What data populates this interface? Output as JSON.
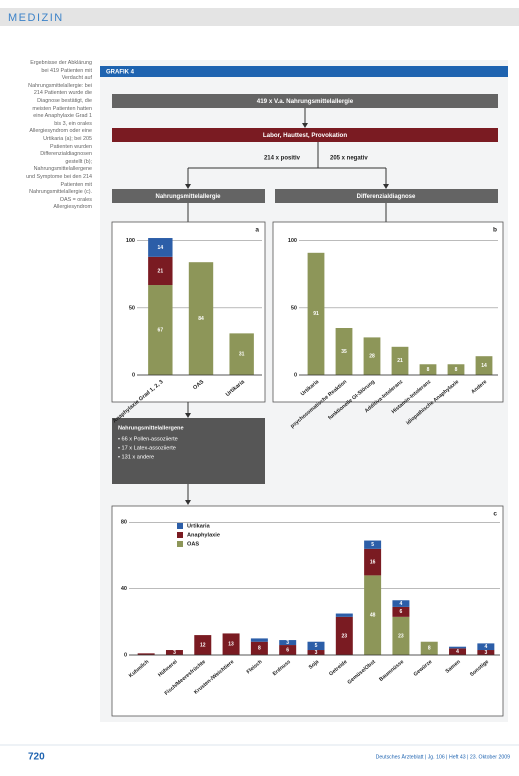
{
  "header": {
    "title": "MEDIZIN"
  },
  "caption": "Ergebnisse der Abklärung bei 419 Patienten mit Verdacht auf Nahrungsmittelallergie: bei 214 Patienten wurde die Diagnose bestätigt, die meisten Patienten hatten eine Anaphylaxie Grad 1 bis 3, ein orales Allergiesyndrom oder eine Urtikaria (a); bei 205 Patienten wurden Differenzialdiagnosen gestellt (b); Nahrungsmittelallergene und Symptome bei den 214 Patienten mit Nahrungsmittelallergie (c). OAS = orales Allergiesyndrom",
  "figure": {
    "title": "GRAFIK 4",
    "flow": {
      "start": "419 x V.a. Nahrungsmittelallergie",
      "tests": "Labor, Hauttest, Provokation",
      "positive": "214 x positiv",
      "negative": "205 x negativ",
      "left_box": "Nahrungsmittelallergie",
      "right_box": "Differenzialdiagnose"
    },
    "allergen_box": {
      "title": "Nahrungsmittelallergene",
      "items": [
        "• 66 x Pollen-assoziierte",
        "• 17 x Latex-assoziierte",
        "• 131 x andere"
      ]
    }
  },
  "chart_data": [
    {
      "type": "bar",
      "panel": "a",
      "categories": [
        "Anaphylaxie Grad 1, 2, 3",
        "OAS",
        "Urtikaria"
      ],
      "series": [
        {
          "color": "#8d9659",
          "values": [
            67,
            84,
            31
          ]
        },
        {
          "color": "#7a1b22",
          "values": [
            21,
            null,
            null
          ]
        },
        {
          "color": "#2c5ea8",
          "values": [
            14,
            null,
            null
          ]
        }
      ],
      "ylim": [
        0,
        105
      ],
      "yticks": [
        0,
        50,
        100
      ],
      "grid": true
    },
    {
      "type": "bar",
      "panel": "b",
      "categories": [
        "Urtikaria",
        "psychosomatische Reaktion",
        "funktionelle GI-Störung",
        "Additiva-Intoleranz",
        "Histamin-Intoleranz",
        "idiopathische Anaphylaxie",
        "Andere"
      ],
      "series": [
        {
          "color": "#8d9659",
          "values": [
            91,
            35,
            28,
            21,
            8,
            8,
            14
          ]
        }
      ],
      "ylim": [
        0,
        105
      ],
      "yticks": [
        0,
        50,
        100
      ],
      "grid": true
    },
    {
      "type": "bar",
      "panel": "c",
      "categories": [
        "Kuhmilch",
        "Hühnerei",
        "Fisch/Meeresfrüchte",
        "Krusten-/Weichtiere",
        "Fleisch",
        "Erdnuss",
        "Soja",
        "Getreide",
        "Gemüse/Obst",
        "Baumnüsse",
        "Gewürze",
        "Samen",
        "Sonstige"
      ],
      "series": [
        {
          "name": "OAS",
          "color": "#8d9659",
          "values": [
            null,
            null,
            null,
            null,
            null,
            null,
            null,
            null,
            48,
            23,
            8,
            null,
            null
          ]
        },
        {
          "name": "Anaphylaxie",
          "color": "#7a1b22",
          "values": [
            1,
            3,
            12,
            13,
            8,
            6,
            3,
            23,
            16,
            6,
            null,
            4,
            3
          ]
        },
        {
          "name": "Urtikaria",
          "color": "#2c5ea8",
          "values": [
            null,
            null,
            null,
            null,
            2,
            3,
            5,
            2,
            5,
            4,
            null,
            1,
            4
          ]
        }
      ],
      "ylim": [
        0,
        85
      ],
      "yticks": [
        0,
        40,
        80
      ],
      "grid": true,
      "legend": "top-left"
    }
  ],
  "footer": {
    "page": "720",
    "journal": "Deutsches Ärzteblatt | Jg. 106 | Heft 43 | 23. Oktober 2009"
  }
}
